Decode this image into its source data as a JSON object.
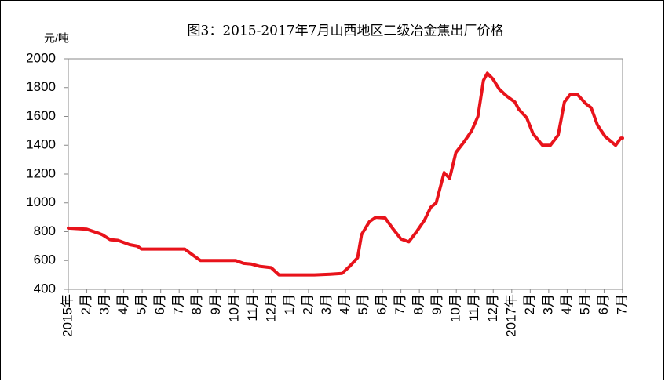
{
  "chart_data": {
    "type": "line",
    "title": "图3：2015-2017年7月山西地区二级冶金焦出厂价格",
    "y_label": "元/吨",
    "x": [
      0,
      0.98,
      1.62,
      1.83,
      2.26,
      2.68,
      3.32,
      3.74,
      3.96,
      4.81,
      6.3,
      6.72,
      7.15,
      9.06,
      9.49,
      9.91,
      10.34,
      10.98,
      11.4,
      13.32,
      14.17,
      14.81,
      15.23,
      15.66,
      15.87,
      16.3,
      16.64,
      17.15,
      17.57,
      18,
      18.43,
      18.85,
      19.28,
      19.62,
      19.91,
      20.34,
      20.64,
      20.98,
      21.4,
      21.83,
      22.17,
      22.47,
      22.68,
      22.98,
      23.32,
      23.74,
      24.17,
      24.38,
      24.81,
      25.15,
      25.66,
      26.09,
      26.51,
      26.85,
      27.15,
      27.57,
      28,
      28.3,
      28.64,
      29.06,
      29.62,
      29.91,
      30
    ],
    "series": [
      {
        "color": "#e8131b",
        "values": [
          825,
          818,
          790,
          780,
          745,
          740,
          710,
          700,
          680,
          680,
          680,
          640,
          600,
          600,
          580,
          575,
          560,
          550,
          500,
          500,
          505,
          510,
          560,
          620,
          780,
          870,
          900,
          895,
          820,
          750,
          730,
          800,
          880,
          970,
          1000,
          1210,
          1170,
          1350,
          1420,
          1500,
          1600,
          1850,
          1900,
          1860,
          1790,
          1740,
          1700,
          1650,
          1590,
          1480,
          1400,
          1400,
          1470,
          1700,
          1750,
          1750,
          1690,
          1660,
          1540,
          1460,
          1400,
          1450,
          1450
        ]
      }
    ],
    "xlim": [
      0,
      30
    ],
    "xticks": [
      {
        "value": 0,
        "label": "2015年"
      },
      {
        "value": 1,
        "label": "2月"
      },
      {
        "value": 2,
        "label": "3月"
      },
      {
        "value": 3,
        "label": "4月"
      },
      {
        "value": 4,
        "label": "5月"
      },
      {
        "value": 5,
        "label": "6月"
      },
      {
        "value": 6,
        "label": "7月"
      },
      {
        "value": 7,
        "label": "8月"
      },
      {
        "value": 8,
        "label": "9月"
      },
      {
        "value": 9,
        "label": "10月"
      },
      {
        "value": 10,
        "label": "11月"
      },
      {
        "value": 11,
        "label": "12月"
      },
      {
        "value": 12,
        "label": "1月"
      },
      {
        "value": 13,
        "label": "2月"
      },
      {
        "value": 14,
        "label": "3月"
      },
      {
        "value": 15,
        "label": "4月"
      },
      {
        "value": 16,
        "label": "5月"
      },
      {
        "value": 17,
        "label": "6月"
      },
      {
        "value": 18,
        "label": "7月"
      },
      {
        "value": 19,
        "label": "8月"
      },
      {
        "value": 20,
        "label": "9月"
      },
      {
        "value": 21,
        "label": "10月"
      },
      {
        "value": 22,
        "label": "11月"
      },
      {
        "value": 23,
        "label": "12月"
      },
      {
        "value": 24,
        "label": "2017年"
      },
      {
        "value": 25,
        "label": "2月"
      },
      {
        "value": 26,
        "label": "3月"
      },
      {
        "value": 27,
        "label": "4月"
      },
      {
        "value": 28,
        "label": "5月"
      },
      {
        "value": 29,
        "label": "6月"
      },
      {
        "value": 30,
        "label": "7月"
      }
    ],
    "ylim": [
      400,
      2000
    ],
    "yticks": [
      400,
      600,
      800,
      1000,
      1200,
      1400,
      1600,
      1800,
      2000
    ],
    "grid": false
  }
}
